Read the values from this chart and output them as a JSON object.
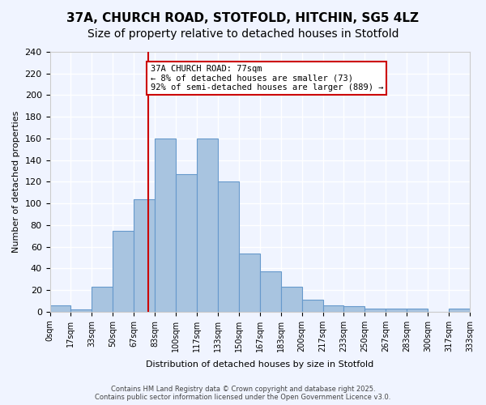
{
  "title": "37A, CHURCH ROAD, STOTFOLD, HITCHIN, SG5 4LZ",
  "subtitle": "Size of property relative to detached houses in Stotfold",
  "xlabel": "Distribution of detached houses by size in Stotfold",
  "ylabel": "Number of detached properties",
  "bar_labels": [
    "0sqm",
    "17sqm",
    "33sqm",
    "50sqm",
    "67sqm",
    "83sqm",
    "100sqm",
    "117sqm",
    "133sqm",
    "150sqm",
    "167sqm",
    "183sqm",
    "200sqm",
    "217sqm",
    "233sqm",
    "250sqm",
    "267sqm",
    "283sqm",
    "300sqm",
    "317sqm",
    "333sqm"
  ],
  "bar_values": [
    6,
    2,
    23,
    75,
    104,
    160,
    127,
    160,
    120,
    54,
    37,
    23,
    11,
    6,
    5,
    3,
    3,
    3,
    0,
    3
  ],
  "bar_color": "#a8c4e0",
  "bar_edge_color": "#6699cc",
  "vline_x": 77,
  "vline_color": "#cc0000",
  "annotation_text": "37A CHURCH ROAD: 77sqm\n← 8% of detached houses are smaller (73)\n92% of semi-detached houses are larger (889) →",
  "annotation_box_color": "#ffffff",
  "annotation_box_edge": "#cc0000",
  "background_color": "#f0f4ff",
  "grid_color": "#ffffff",
  "title_fontsize": 11,
  "subtitle_fontsize": 10,
  "footer_text": "Contains HM Land Registry data © Crown copyright and database right 2025.\nContains public sector information licensed under the Open Government Licence v3.0.",
  "ylim": [
    0,
    240
  ],
  "bin_width": 16.5
}
